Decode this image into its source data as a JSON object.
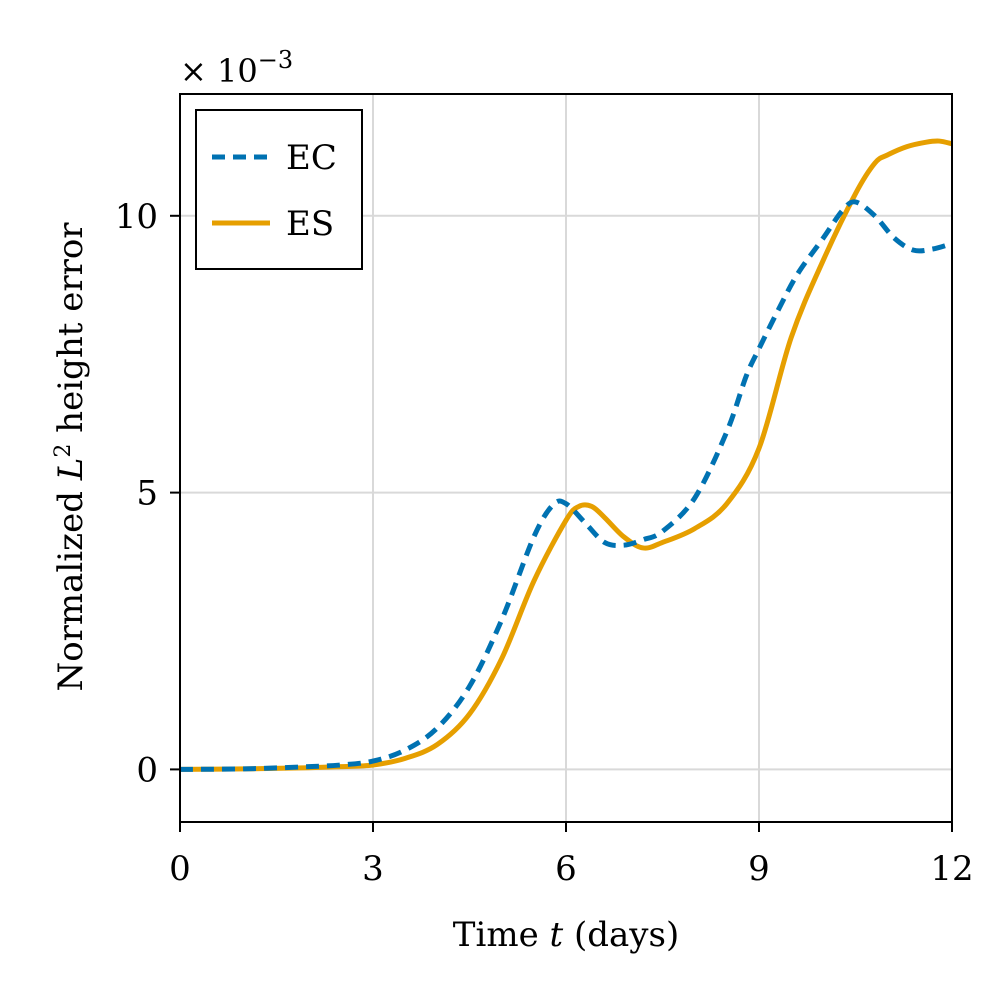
{
  "chart_data": {
    "type": "line",
    "title": "",
    "xlabel": "Time t (days)",
    "xlabel_prefix": "Time ",
    "xlabel_var": "t",
    "xlabel_suffix": " (days)",
    "ylabel": "Normalized L² height error",
    "ylabel_prefix": "Normalized ",
    "ylabel_var": "L",
    "ylabel_sup": "2",
    "ylabel_suffix": " height error",
    "y_multiplier": "× 10",
    "y_multiplier_exp": "−3",
    "xlim": [
      0,
      12
    ],
    "ylim": [
      -0.95,
      12.2
    ],
    "xticks": [
      0,
      3,
      6,
      9,
      12
    ],
    "xtick_labels": [
      "0",
      "3",
      "6",
      "9",
      "12"
    ],
    "yticks": [
      0,
      5,
      10
    ],
    "ytick_labels": [
      "0",
      "5",
      "10"
    ],
    "grid": true,
    "legend_position": "top-left",
    "colors": {
      "EC": "#0072b2",
      "ES": "#e69f00",
      "grid": "#d9d9d9",
      "frame": "#000000"
    },
    "series": [
      {
        "name": "EC",
        "style": "dashed",
        "x": [
          0,
          1,
          2,
          2.5,
          3,
          3.5,
          4,
          4.5,
          5,
          5.5,
          5.8,
          6,
          6.3,
          6.6,
          6.9,
          7.2,
          7.5,
          8,
          8.5,
          8.8,
          9,
          9.3,
          9.6,
          10,
          10.3,
          10.5,
          10.8,
          11.1,
          11.4,
          11.7,
          12
        ],
        "values": [
          0,
          0.01,
          0.05,
          0.08,
          0.15,
          0.35,
          0.75,
          1.5,
          2.7,
          4.2,
          4.78,
          4.8,
          4.45,
          4.1,
          4.05,
          4.15,
          4.3,
          4.9,
          6.1,
          7.1,
          7.6,
          8.3,
          8.95,
          9.6,
          10.1,
          10.25,
          10.0,
          9.6,
          9.38,
          9.4,
          9.5
        ]
      },
      {
        "name": "ES",
        "style": "solid",
        "x": [
          0,
          1,
          2,
          2.5,
          3,
          3.5,
          4,
          4.5,
          5,
          5.5,
          6,
          6.2,
          6.4,
          6.6,
          6.9,
          7.2,
          7.5,
          8,
          8.5,
          9,
          9.5,
          10,
          10.5,
          10.8,
          11,
          11.3,
          11.6,
          11.8,
          12
        ],
        "values": [
          0,
          0.01,
          0.03,
          0.05,
          0.08,
          0.2,
          0.45,
          1.0,
          2.0,
          3.4,
          4.5,
          4.75,
          4.75,
          4.55,
          4.2,
          4.0,
          4.1,
          4.35,
          4.8,
          5.8,
          7.8,
          9.2,
          10.4,
          10.95,
          11.1,
          11.25,
          11.33,
          11.35,
          11.3
        ]
      }
    ]
  }
}
